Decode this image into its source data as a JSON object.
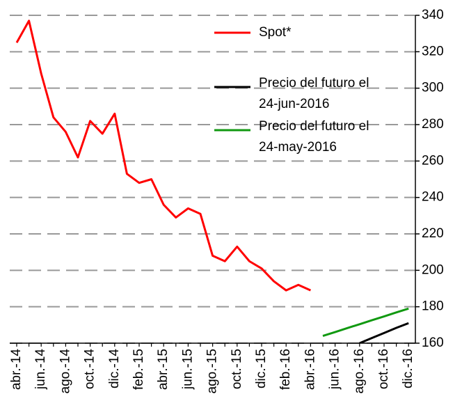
{
  "chart_data": {
    "type": "line",
    "categories": [
      "abr.-14",
      null,
      "jun.-14",
      null,
      "ago.-14",
      null,
      "oct.-14",
      null,
      "dic.-14",
      null,
      "feb.-15",
      null,
      "abr.-15",
      null,
      "jun.-15",
      null,
      "ago.-15",
      null,
      "oct.-15",
      null,
      "dic.-15",
      null,
      "feb.-16",
      null,
      "abr.-16",
      null,
      "jun.-16",
      null,
      "ago.-16",
      null,
      "oct.-16",
      null,
      "dic.-16"
    ],
    "series": [
      {
        "name": "Spot*",
        "color": "#ff0000",
        "values": [
          325,
          337,
          308,
          284,
          276,
          262,
          282,
          275,
          286,
          253,
          248,
          250,
          236,
          229,
          234,
          231,
          208,
          205,
          213,
          205,
          201,
          194,
          189,
          192,
          189,
          null,
          null,
          null,
          null,
          null,
          null,
          null,
          null
        ]
      },
      {
        "name": "Precio del futuro el 24-jun-2016",
        "color": "#000000",
        "values": [
          null,
          null,
          null,
          null,
          null,
          null,
          null,
          null,
          null,
          null,
          null,
          null,
          null,
          null,
          null,
          null,
          null,
          null,
          null,
          null,
          null,
          null,
          null,
          null,
          null,
          null,
          null,
          null,
          160,
          162.8,
          165.6,
          168.4,
          171
        ]
      },
      {
        "name": "Precio del futuro el 24-may-2016",
        "color": "#119911",
        "values": [
          null,
          null,
          null,
          null,
          null,
          null,
          null,
          null,
          null,
          null,
          null,
          null,
          null,
          null,
          null,
          null,
          null,
          null,
          null,
          null,
          null,
          null,
          null,
          null,
          null,
          164,
          166.1,
          168.3,
          170.4,
          172.6,
          174.7,
          176.9,
          179
        ]
      }
    ],
    "ylim": [
      160,
      340
    ],
    "yticks": [
      160,
      180,
      200,
      220,
      240,
      260,
      280,
      300,
      320,
      340
    ],
    "grid": true
  }
}
